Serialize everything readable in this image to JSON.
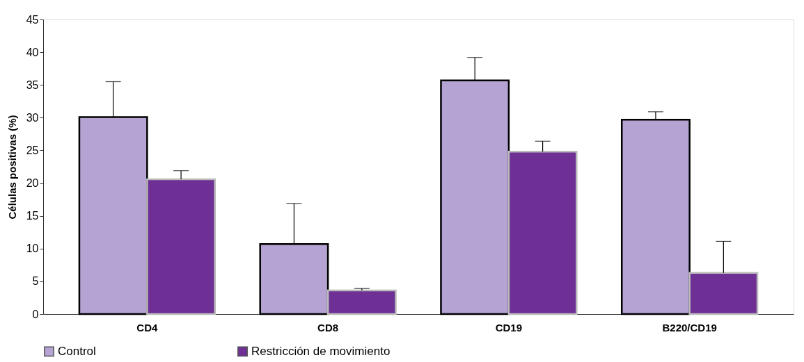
{
  "chart_data": {
    "type": "bar",
    "ylabel": "Células positivas (%)",
    "categories": [
      "CD4",
      "CD8",
      "CD19",
      "B220/CD19"
    ],
    "series": [
      {
        "name": "Control",
        "color": "#b4a3d3",
        "values": [
          30.1,
          10.7,
          35.7,
          29.7
        ],
        "errors": [
          [
            30.1,
            35.5
          ],
          [
            10.7,
            16.9
          ],
          [
            35.7,
            39.2
          ],
          [
            29.7,
            30.9
          ]
        ]
      },
      {
        "name": "Restricción de movimiento",
        "color": "#6f3096",
        "values": [
          20.6,
          3.6,
          24.8,
          6.3
        ],
        "errors": [
          [
            20.6,
            21.9
          ],
          [
            3.6,
            3.9
          ],
          [
            24.8,
            26.4
          ],
          [
            6.3,
            11.1
          ]
        ]
      }
    ],
    "ylim": [
      0,
      45
    ],
    "yticks": [
      0,
      5,
      10,
      15,
      20,
      25,
      30,
      35,
      40,
      45
    ],
    "grid": false,
    "legend": "bottom"
  }
}
